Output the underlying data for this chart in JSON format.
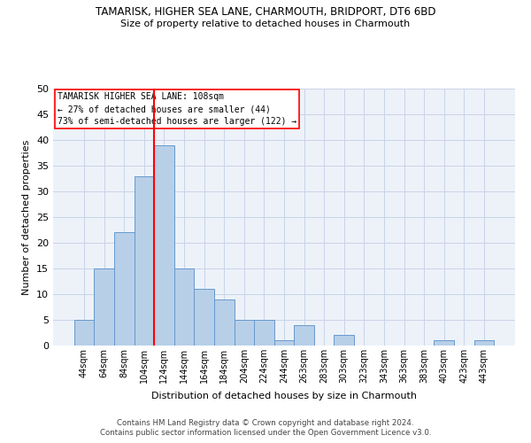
{
  "title": "TAMARISK, HIGHER SEA LANE, CHARMOUTH, BRIDPORT, DT6 6BD",
  "subtitle": "Size of property relative to detached houses in Charmouth",
  "xlabel": "Distribution of detached houses by size in Charmouth",
  "ylabel": "Number of detached properties",
  "bar_labels": [
    "44sqm",
    "64sqm",
    "84sqm",
    "104sqm",
    "124sqm",
    "144sqm",
    "164sqm",
    "184sqm",
    "204sqm",
    "224sqm",
    "244sqm",
    "263sqm",
    "283sqm",
    "303sqm",
    "323sqm",
    "343sqm",
    "363sqm",
    "383sqm",
    "403sqm",
    "423sqm",
    "443sqm"
  ],
  "bar_values": [
    5,
    15,
    22,
    33,
    39,
    15,
    11,
    9,
    5,
    5,
    1,
    4,
    0,
    2,
    0,
    0,
    0,
    0,
    1,
    0,
    1
  ],
  "bar_color": "#b8cfe8",
  "bar_edge_color": "#6699cc",
  "vline_color": "red",
  "vline_x_index": 3.5,
  "ylim": [
    0,
    50
  ],
  "yticks": [
    0,
    5,
    10,
    15,
    20,
    25,
    30,
    35,
    40,
    45,
    50
  ],
  "annotation_title": "TAMARISK HIGHER SEA LANE: 108sqm",
  "annotation_line1": "← 27% of detached houses are smaller (44)",
  "annotation_line2": "73% of semi-detached houses are larger (122) →",
  "footer1": "Contains HM Land Registry data © Crown copyright and database right 2024.",
  "footer2": "Contains public sector information licensed under the Open Government Licence v3.0.",
  "bg_color": "#edf2f9",
  "grid_color": "#c8d4e8"
}
